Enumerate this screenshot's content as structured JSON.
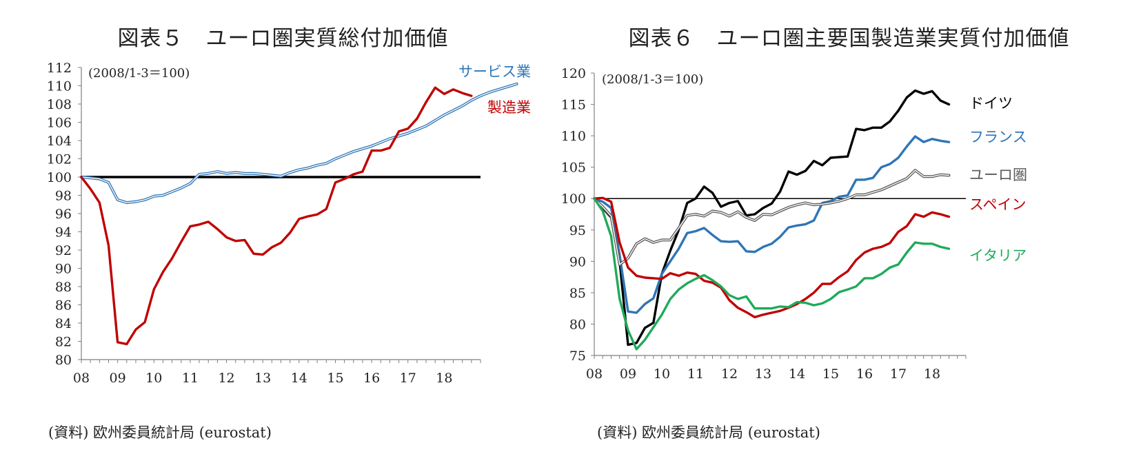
{
  "chart_data": [
    {
      "type": "line",
      "title": "図表５　ユーロ圏実質総付加価値",
      "unit_note": "(2008/1-3＝100)",
      "source": "(資料) 欧州委員統計局 (eurostat)",
      "x_tick_labels": [
        "08",
        "09",
        "10",
        "11",
        "12",
        "13",
        "14",
        "15",
        "16",
        "17",
        "18"
      ],
      "y_ticks": [
        80,
        82,
        84,
        86,
        88,
        90,
        92,
        94,
        96,
        98,
        100,
        102,
        104,
        106,
        108,
        110,
        112
      ],
      "ylim": [
        80,
        112
      ],
      "x_start": "2008Q1",
      "reference_line": 100,
      "grid": false,
      "series": [
        {
          "name": "サービス業",
          "color": "#2e75b6",
          "style": "double",
          "values": [
            100,
            99.9,
            99.8,
            99.4,
            97.5,
            97.2,
            97.3,
            97.5,
            97.9,
            98.0,
            98.4,
            98.8,
            99.3,
            100.3,
            100.4,
            100.6,
            100.4,
            100.5,
            100.4,
            100.4,
            100.3,
            100.2,
            100.1,
            100.5,
            100.8,
            101.0,
            101.3,
            101.5,
            102.0,
            102.4,
            102.8,
            103.1,
            103.4,
            103.8,
            104.2,
            104.5,
            104.8,
            105.2,
            105.6,
            106.2,
            106.8,
            107.3,
            107.8,
            108.4,
            108.9,
            109.3,
            109.6,
            109.9,
            110.2
          ]
        },
        {
          "name": "製造業",
          "color": "#c00000",
          "style": "solid",
          "values": [
            100,
            98.7,
            97.2,
            92.5,
            81.9,
            81.7,
            83.3,
            84.1,
            87.7,
            89.6,
            91.1,
            92.9,
            94.6,
            94.8,
            95.1,
            94.3,
            93.4,
            93.0,
            93.1,
            91.6,
            91.5,
            92.3,
            92.8,
            93.9,
            95.4,
            95.7,
            95.9,
            96.5,
            99.4,
            99.8,
            100.3,
            100.6,
            102.9,
            102.9,
            103.2,
            105.0,
            105.3,
            106.4,
            108.2,
            109.8,
            109.1,
            109.6,
            109.2,
            108.9
          ]
        }
      ]
    },
    {
      "type": "line",
      "title": "図表６　ユーロ圏主要国製造業実質付加価値",
      "unit_note": "(2008/1-3＝100)",
      "source": "(資料) 欧州委員統計局 (eurostat)",
      "x_tick_labels": [
        "08",
        "09",
        "10",
        "11",
        "12",
        "13",
        "14",
        "15",
        "16",
        "17",
        "18"
      ],
      "y_ticks": [
        75,
        80,
        85,
        90,
        95,
        100,
        105,
        110,
        115,
        120
      ],
      "ylim": [
        75,
        120
      ],
      "x_start": "2008Q1",
      "reference_line": 100,
      "grid": false,
      "series": [
        {
          "name": "ドイツ",
          "color": "#000000",
          "style": "solid",
          "values": [
            100,
            98.5,
            97.0,
            90.0,
            76.7,
            77.0,
            79.4,
            80.2,
            88.0,
            91.7,
            95.0,
            99.3,
            100.0,
            101.9,
            100.9,
            98.7,
            99.3,
            99.6,
            97.3,
            97.5,
            98.5,
            99.2,
            101.1,
            104.3,
            103.8,
            104.4,
            106.0,
            105.3,
            106.5,
            106.6,
            106.7,
            111.1,
            110.9,
            111.3,
            111.3,
            112.3,
            114.0,
            116.1,
            117.2,
            116.7,
            117.1,
            115.6,
            115.0
          ]
        },
        {
          "name": "フランス",
          "color": "#2e75b6",
          "style": "solid",
          "values": [
            100,
            99.5,
            98.5,
            91.0,
            82.0,
            81.8,
            83.2,
            84.1,
            88.0,
            90.0,
            92.0,
            94.5,
            94.8,
            95.3,
            94.2,
            93.2,
            93.1,
            93.2,
            91.6,
            91.5,
            92.3,
            92.8,
            93.9,
            95.4,
            95.7,
            95.9,
            96.5,
            99.3,
            99.6,
            100.3,
            100.5,
            103.0,
            103.0,
            103.3,
            105.0,
            105.5,
            106.5,
            108.3,
            109.9,
            109.0,
            109.5,
            109.2,
            109.0
          ]
        },
        {
          "name": "ユーロ圏",
          "color": "#595959",
          "style": "double",
          "values": [
            100,
            98.7,
            97.2,
            89.5,
            90.5,
            92.8,
            93.6,
            93.0,
            93.4,
            93.4,
            95.3,
            97.3,
            97.5,
            97.2,
            98.0,
            97.8,
            97.2,
            97.9,
            97.0,
            96.5,
            97.5,
            97.4,
            98.0,
            98.6,
            99.0,
            99.3,
            99.0,
            99.1,
            99.3,
            99.6,
            100.0,
            100.6,
            100.6,
            101.0,
            101.4,
            102.0,
            102.6,
            103.2,
            104.5,
            103.5,
            103.5,
            103.8,
            103.7
          ]
        },
        {
          "name": "スペイン",
          "color": "#c00000",
          "style": "solid",
          "values": [
            100,
            100.1,
            99.5,
            93.0,
            89.0,
            87.7,
            87.4,
            87.3,
            87.2,
            88.1,
            87.7,
            88.2,
            88.0,
            86.9,
            86.6,
            85.8,
            83.8,
            82.6,
            81.9,
            81.1,
            81.5,
            81.8,
            82.1,
            82.6,
            83.2,
            84.0,
            85.0,
            86.4,
            86.4,
            87.5,
            88.4,
            90.2,
            91.4,
            92.0,
            92.3,
            92.9,
            94.7,
            95.6,
            97.5,
            97.1,
            97.8,
            97.5,
            97.1
          ]
        },
        {
          "name": "イタリア",
          "color": "#1faa5a",
          "style": "solid",
          "values": [
            100,
            98.0,
            94.0,
            84.0,
            79.0,
            76.0,
            77.5,
            79.5,
            81.5,
            84.0,
            85.5,
            86.5,
            87.2,
            87.8,
            87.0,
            86.0,
            84.6,
            84.0,
            84.4,
            82.5,
            82.5,
            82.5,
            82.8,
            82.7,
            83.5,
            83.4,
            83.0,
            83.3,
            84.0,
            85.1,
            85.5,
            86.0,
            87.3,
            87.3,
            88.0,
            89.0,
            89.5,
            91.4,
            93.0,
            92.8,
            92.8,
            92.3,
            92.0
          ]
        }
      ]
    }
  ]
}
